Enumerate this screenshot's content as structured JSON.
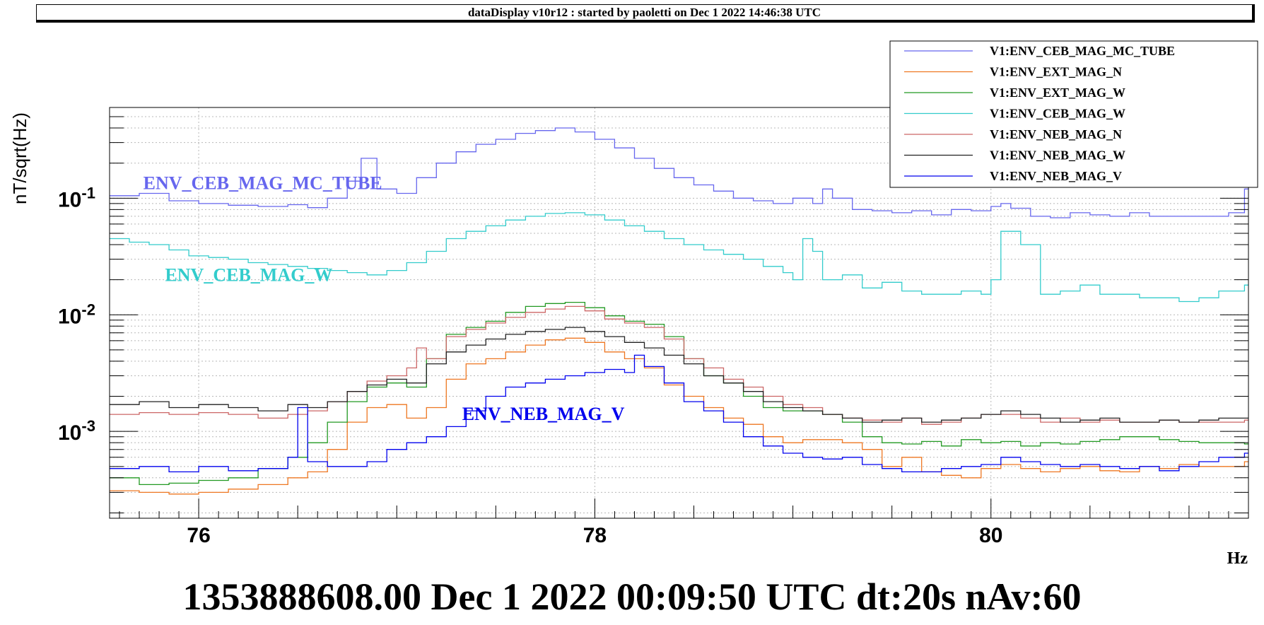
{
  "header": {
    "title": "dataDisplay v10r12 : started by paoletti on Dec  1 2022 14:46:38 UTC"
  },
  "chart_data": {
    "type": "line",
    "step": true,
    "y_scale": "log",
    "xlim": [
      75.55,
      81.3
    ],
    "ylim": [
      0.00018,
      0.6
    ],
    "ylabel": "nT/sqrt(Hz)",
    "x_unit": "Hz",
    "x_ticks": [
      76,
      78,
      80
    ],
    "x_tick_labels": [
      "76",
      "78",
      "80"
    ],
    "y_ticks": [
      0.1,
      0.01,
      0.001
    ],
    "y_tick_labels": [
      {
        "base": "10",
        "exp": "-1"
      },
      {
        "base": "10",
        "exp": "-2"
      },
      {
        "base": "10",
        "exp": "-3"
      }
    ],
    "grid": true,
    "legend_position": "top-right",
    "footer": "1353888608.00 Dec 1 2022 00:09:50 UTC dt:20s nAv:60",
    "annotations": [
      {
        "text": "ENV_CEB_MAG_MC_TUBE",
        "color": "#6666ee",
        "x": 75.72,
        "y": 0.12
      },
      {
        "text": "ENV_CEB_MAG_W",
        "color": "#33cccc",
        "x": 75.83,
        "y": 0.0195
      },
      {
        "text": "ENV_NEB_MAG_V",
        "color": "#0000ee",
        "x": 77.33,
        "y": 0.00125
      }
    ],
    "series": [
      {
        "name": "V1:ENV_CEB_MAG_MC_TUBE",
        "color": "#6666ee",
        "x": [
          75.55,
          75.7,
          75.85,
          76.0,
          76.15,
          76.3,
          76.45,
          76.55,
          76.65,
          76.75,
          76.82,
          76.9,
          77.0,
          77.1,
          77.2,
          77.3,
          77.4,
          77.5,
          77.6,
          77.7,
          77.8,
          77.9,
          78.0,
          78.1,
          78.2,
          78.3,
          78.4,
          78.5,
          78.6,
          78.7,
          78.8,
          78.9,
          79.0,
          79.1,
          79.15,
          79.2,
          79.3,
          79.4,
          79.5,
          79.6,
          79.7,
          79.8,
          79.9,
          80.0,
          80.05,
          80.1,
          80.2,
          80.3,
          80.4,
          80.5,
          80.6,
          80.7,
          80.8,
          80.9,
          81.0,
          81.1,
          81.2,
          81.28
        ],
        "y": [
          0.105,
          0.11,
          0.095,
          0.09,
          0.087,
          0.085,
          0.088,
          0.083,
          0.1,
          0.14,
          0.22,
          0.12,
          0.11,
          0.15,
          0.2,
          0.25,
          0.29,
          0.32,
          0.36,
          0.38,
          0.4,
          0.37,
          0.32,
          0.27,
          0.22,
          0.18,
          0.15,
          0.13,
          0.115,
          0.1,
          0.095,
          0.09,
          0.1,
          0.09,
          0.12,
          0.1,
          0.08,
          0.078,
          0.075,
          0.078,
          0.072,
          0.08,
          0.078,
          0.085,
          0.09,
          0.082,
          0.07,
          0.068,
          0.075,
          0.072,
          0.07,
          0.075,
          0.07,
          0.07,
          0.07,
          0.07,
          0.075,
          0.12
        ]
      },
      {
        "name": "V1:ENV_EXT_MAG_N",
        "color": "#ee7722",
        "x": [
          75.55,
          75.7,
          75.85,
          76.0,
          76.15,
          76.3,
          76.45,
          76.55,
          76.65,
          76.75,
          76.85,
          76.95,
          77.05,
          77.15,
          77.25,
          77.35,
          77.45,
          77.55,
          77.65,
          77.75,
          77.85,
          77.95,
          78.05,
          78.15,
          78.25,
          78.35,
          78.45,
          78.55,
          78.65,
          78.75,
          78.85,
          78.95,
          79.05,
          79.15,
          79.25,
          79.35,
          79.45,
          79.55,
          79.65,
          79.75,
          79.85,
          79.95,
          80.05,
          80.15,
          80.25,
          80.35,
          80.45,
          80.55,
          80.65,
          80.75,
          80.85,
          80.95,
          81.05,
          81.15,
          81.28
        ],
        "y": [
          0.00031,
          0.0003,
          0.00029,
          0.0003,
          0.00032,
          0.00035,
          0.0004,
          0.00045,
          0.0007,
          0.0012,
          0.0016,
          0.0017,
          0.0013,
          0.0016,
          0.0028,
          0.0038,
          0.0042,
          0.0048,
          0.0055,
          0.0061,
          0.0063,
          0.0058,
          0.0048,
          0.0042,
          0.0035,
          0.0025,
          0.002,
          0.0016,
          0.0013,
          0.00115,
          0.0009,
          0.0008,
          0.00085,
          0.00085,
          0.0008,
          0.0007,
          0.0005,
          0.0006,
          0.00045,
          0.00042,
          0.0004,
          0.00048,
          0.00052,
          0.00048,
          0.00045,
          0.00048,
          0.0005,
          0.00046,
          0.00045,
          0.0005,
          0.00048,
          0.00052,
          0.0005,
          0.0005,
          0.00055
        ]
      },
      {
        "name": "V1:ENV_EXT_MAG_W",
        "color": "#229922",
        "x": [
          75.55,
          75.7,
          75.85,
          76.0,
          76.15,
          76.3,
          76.45,
          76.55,
          76.65,
          76.75,
          76.85,
          76.95,
          77.05,
          77.15,
          77.25,
          77.35,
          77.45,
          77.55,
          77.65,
          77.75,
          77.85,
          77.95,
          78.05,
          78.15,
          78.25,
          78.35,
          78.45,
          78.55,
          78.65,
          78.75,
          78.85,
          78.95,
          79.05,
          79.15,
          79.25,
          79.35,
          79.45,
          79.55,
          79.65,
          79.75,
          79.85,
          79.95,
          80.05,
          80.15,
          80.25,
          80.35,
          80.45,
          80.55,
          80.65,
          80.75,
          80.85,
          80.95,
          81.05,
          81.15,
          81.28
        ],
        "y": [
          0.0004,
          0.00035,
          0.00036,
          0.00038,
          0.0004,
          0.00048,
          0.0006,
          0.0008,
          0.0012,
          0.0018,
          0.0024,
          0.0026,
          0.0024,
          0.0042,
          0.0068,
          0.0078,
          0.0088,
          0.0105,
          0.0118,
          0.0125,
          0.0128,
          0.0115,
          0.0098,
          0.0088,
          0.0083,
          0.0065,
          0.0042,
          0.003,
          0.0026,
          0.002,
          0.0016,
          0.0015,
          0.0015,
          0.0014,
          0.0012,
          0.0009,
          0.0008,
          0.00078,
          0.00082,
          0.00075,
          0.00085,
          0.0008,
          0.00082,
          0.00075,
          0.0008,
          0.00078,
          0.00082,
          0.00085,
          0.0009,
          0.0009,
          0.00085,
          0.00082,
          0.0008,
          0.0008,
          0.00078
        ]
      },
      {
        "name": "V1:ENV_CEB_MAG_W",
        "color": "#33cccc",
        "x": [
          75.55,
          75.65,
          75.75,
          75.85,
          75.95,
          76.05,
          76.15,
          76.25,
          76.35,
          76.45,
          76.55,
          76.65,
          76.75,
          76.85,
          76.95,
          77.05,
          77.15,
          77.25,
          77.35,
          77.45,
          77.55,
          77.65,
          77.75,
          77.85,
          77.95,
          78.05,
          78.15,
          78.25,
          78.35,
          78.45,
          78.55,
          78.65,
          78.75,
          78.85,
          78.95,
          79.0,
          79.05,
          79.1,
          79.15,
          79.25,
          79.35,
          79.45,
          79.55,
          79.65,
          79.75,
          79.85,
          79.95,
          80.0,
          80.05,
          80.15,
          80.25,
          80.35,
          80.45,
          80.55,
          80.65,
          80.75,
          80.85,
          80.95,
          81.05,
          81.15,
          81.28
        ],
        "y": [
          0.045,
          0.042,
          0.04,
          0.036,
          0.032,
          0.031,
          0.03,
          0.028,
          0.027,
          0.026,
          0.025,
          0.024,
          0.023,
          0.022,
          0.024,
          0.028,
          0.035,
          0.045,
          0.052,
          0.058,
          0.065,
          0.07,
          0.074,
          0.075,
          0.072,
          0.065,
          0.058,
          0.052,
          0.045,
          0.04,
          0.036,
          0.033,
          0.03,
          0.026,
          0.023,
          0.02,
          0.045,
          0.035,
          0.02,
          0.022,
          0.017,
          0.019,
          0.016,
          0.015,
          0.015,
          0.016,
          0.015,
          0.02,
          0.052,
          0.04,
          0.015,
          0.016,
          0.018,
          0.015,
          0.015,
          0.014,
          0.014,
          0.013,
          0.014,
          0.016,
          0.018
        ]
      },
      {
        "name": "V1:ENV_NEB_MAG_N",
        "color": "#cc6666",
        "x": [
          75.55,
          75.7,
          75.85,
          76.0,
          76.15,
          76.3,
          76.45,
          76.55,
          76.65,
          76.75,
          76.85,
          76.95,
          77.05,
          77.1,
          77.15,
          77.25,
          77.35,
          77.45,
          77.55,
          77.65,
          77.75,
          77.85,
          77.95,
          78.05,
          78.15,
          78.25,
          78.35,
          78.45,
          78.55,
          78.65,
          78.75,
          78.85,
          78.95,
          79.05,
          79.15,
          79.25,
          79.35,
          79.45,
          79.55,
          79.65,
          79.75,
          79.85,
          79.95,
          80.05,
          80.15,
          80.25,
          80.35,
          80.45,
          80.55,
          80.65,
          80.75,
          80.85,
          80.95,
          81.05,
          81.15,
          81.28
        ],
        "y": [
          0.0014,
          0.00145,
          0.0014,
          0.00145,
          0.0014,
          0.0013,
          0.0014,
          0.0015,
          0.0018,
          0.0022,
          0.0027,
          0.003,
          0.0035,
          0.0052,
          0.0042,
          0.0065,
          0.0075,
          0.0085,
          0.0095,
          0.0105,
          0.0112,
          0.0118,
          0.0108,
          0.0092,
          0.0085,
          0.0078,
          0.0062,
          0.0042,
          0.0035,
          0.0028,
          0.0024,
          0.002,
          0.0017,
          0.0016,
          0.0014,
          0.0013,
          0.00125,
          0.0012,
          0.0013,
          0.00115,
          0.0012,
          0.0013,
          0.0014,
          0.0014,
          0.0013,
          0.0012,
          0.0013,
          0.0012,
          0.00125,
          0.0012,
          0.0012,
          0.00125,
          0.0012,
          0.0012,
          0.0012,
          0.00125
        ]
      },
      {
        "name": "V1:ENV_NEB_MAG_W",
        "color": "#222222",
        "x": [
          75.55,
          75.7,
          75.85,
          76.0,
          76.15,
          76.3,
          76.45,
          76.55,
          76.65,
          76.75,
          76.85,
          76.95,
          77.05,
          77.15,
          77.25,
          77.35,
          77.45,
          77.55,
          77.65,
          77.75,
          77.85,
          77.95,
          78.05,
          78.15,
          78.25,
          78.35,
          78.45,
          78.55,
          78.65,
          78.75,
          78.85,
          78.95,
          79.05,
          79.15,
          79.25,
          79.35,
          79.45,
          79.55,
          79.65,
          79.75,
          79.85,
          79.95,
          80.05,
          80.15,
          80.25,
          80.35,
          80.45,
          80.55,
          80.65,
          80.75,
          80.85,
          80.95,
          81.05,
          81.15,
          81.28
        ],
        "y": [
          0.0017,
          0.0018,
          0.0016,
          0.0017,
          0.0016,
          0.0015,
          0.0017,
          0.0016,
          0.0018,
          0.0022,
          0.0025,
          0.0028,
          0.0026,
          0.0038,
          0.0048,
          0.0055,
          0.0062,
          0.0068,
          0.0072,
          0.0075,
          0.0078,
          0.0072,
          0.0065,
          0.0058,
          0.0052,
          0.0045,
          0.0038,
          0.003,
          0.0026,
          0.0022,
          0.0018,
          0.0016,
          0.0015,
          0.0014,
          0.0013,
          0.0012,
          0.00125,
          0.0013,
          0.0012,
          0.00125,
          0.0013,
          0.0014,
          0.0015,
          0.0014,
          0.0013,
          0.0012,
          0.00125,
          0.0013,
          0.0012,
          0.0012,
          0.00125,
          0.0012,
          0.00125,
          0.0013,
          0.0013
        ]
      },
      {
        "name": "V1:ENV_NEB_MAG_V",
        "color": "#0000ee",
        "x": [
          75.55,
          75.7,
          75.85,
          76.0,
          76.15,
          76.3,
          76.45,
          76.5,
          76.55,
          76.65,
          76.75,
          76.85,
          76.95,
          77.05,
          77.15,
          77.25,
          77.35,
          77.45,
          77.55,
          77.65,
          77.75,
          77.85,
          77.95,
          78.05,
          78.15,
          78.2,
          78.25,
          78.35,
          78.45,
          78.55,
          78.65,
          78.75,
          78.85,
          78.95,
          79.05,
          79.15,
          79.25,
          79.35,
          79.45,
          79.55,
          79.65,
          79.75,
          79.85,
          79.95,
          80.05,
          80.15,
          80.25,
          80.35,
          80.45,
          80.55,
          80.65,
          80.75,
          80.85,
          80.95,
          81.05,
          81.15,
          81.28
        ],
        "y": [
          0.00048,
          0.0005,
          0.00045,
          0.0005,
          0.00046,
          0.00048,
          0.0006,
          0.0016,
          0.00055,
          0.0005,
          0.0005,
          0.00055,
          0.0007,
          0.0008,
          0.0009,
          0.0011,
          0.0015,
          0.002,
          0.0024,
          0.0026,
          0.0028,
          0.003,
          0.0032,
          0.0034,
          0.0032,
          0.0045,
          0.0036,
          0.0026,
          0.0018,
          0.0015,
          0.0012,
          0.0009,
          0.00075,
          0.00065,
          0.0006,
          0.00058,
          0.0006,
          0.00052,
          0.00048,
          0.00045,
          0.00045,
          0.00048,
          0.0005,
          0.00052,
          0.0006,
          0.00055,
          0.00052,
          0.0005,
          0.00052,
          0.0005,
          0.00048,
          0.0005,
          0.00046,
          0.0005,
          0.00055,
          0.0006,
          0.00065
        ]
      }
    ]
  }
}
